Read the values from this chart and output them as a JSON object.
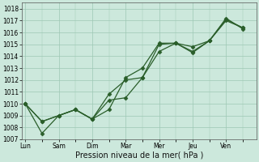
{
  "xlabel": "Pression niveau de la mer( hPa )",
  "xlabels": [
    "Lun",
    "Sam",
    "Dim",
    "Mar",
    "Mer",
    "Jeu",
    "Ven"
  ],
  "ylim": [
    1007,
    1018.5
  ],
  "yticks": [
    1007,
    1008,
    1009,
    1010,
    1011,
    1012,
    1013,
    1014,
    1015,
    1016,
    1017,
    1018
  ],
  "bg_color": "#cce8dc",
  "grid_color": "#9ec8b4",
  "line_color": "#2a5e2a",
  "line1_x": [
    0,
    0.5,
    1.0,
    1.5,
    2.0,
    2.5,
    3.0,
    3.5,
    4.0,
    4.5,
    5.0,
    5.5,
    6.0,
    6.5
  ],
  "line1_y": [
    1010.0,
    1008.5,
    1009.0,
    1009.5,
    1008.7,
    1009.5,
    1012.2,
    1013.0,
    1015.1,
    1015.1,
    1014.8,
    1015.3,
    1017.1,
    1016.4
  ],
  "line2_x": [
    0,
    0.5,
    1.0,
    1.5,
    2.0,
    2.5,
    3.0,
    3.5,
    4.0,
    4.5,
    5.0,
    5.5,
    6.0,
    6.5
  ],
  "line2_y": [
    1010.0,
    1008.5,
    1009.0,
    1009.5,
    1008.7,
    1010.3,
    1010.5,
    1012.2,
    1014.4,
    1015.1,
    1014.4,
    1015.3,
    1017.0,
    1016.4
  ],
  "line3_x": [
    0,
    0.5,
    1.0,
    1.5,
    2.0,
    2.5,
    3.0,
    3.5,
    4.0,
    4.5,
    5.0,
    5.5,
    6.0,
    6.5
  ],
  "line3_y": [
    1010.0,
    1007.5,
    1009.0,
    1009.5,
    1008.7,
    1010.8,
    1012.0,
    1012.2,
    1015.0,
    1015.1,
    1014.3,
    1015.3,
    1017.2,
    1016.3
  ],
  "marker": "D",
  "marker_size": 2.5,
  "linewidth": 0.9,
  "xlabel_fontsize": 7,
  "tick_fontsize": 5.5
}
